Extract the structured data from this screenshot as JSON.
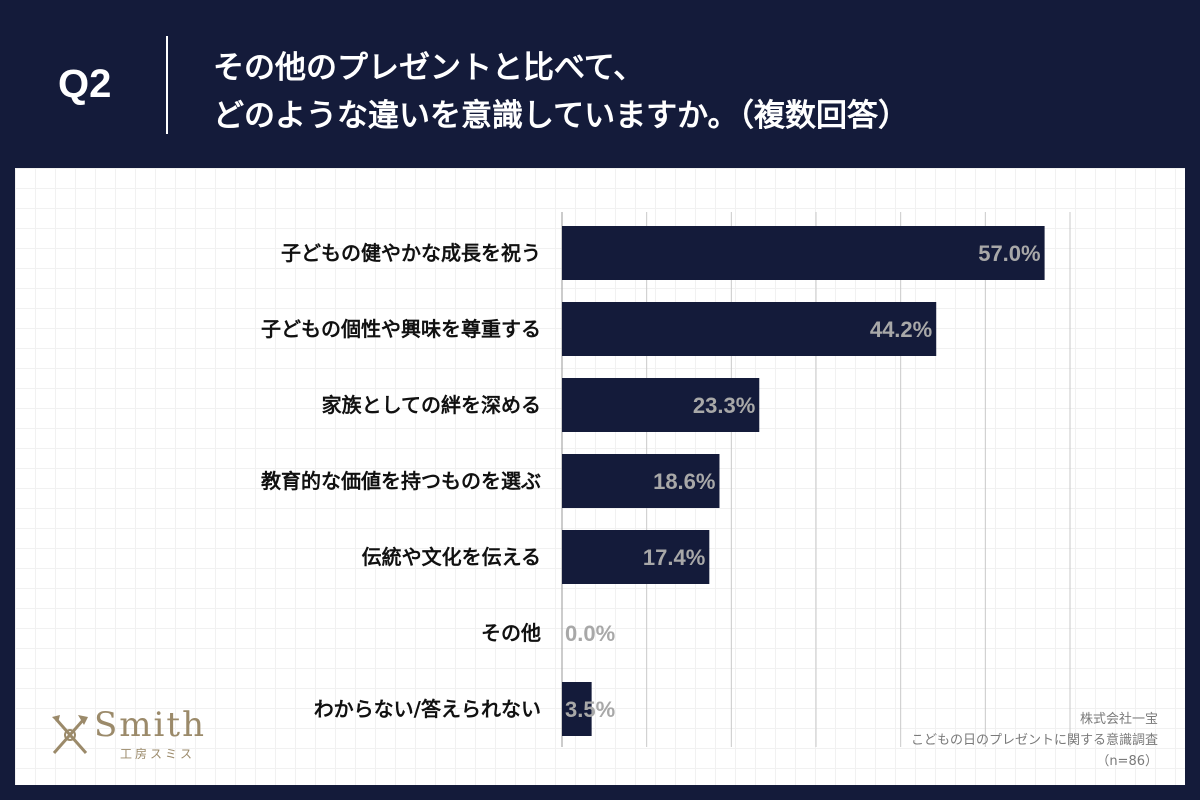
{
  "header": {
    "question_label": "Q2",
    "title_line1": "その他のプレゼントと比べて、",
    "title_line2": "どのような違いを意識していますか。（複数回答）"
  },
  "logo": {
    "name": "Smith",
    "subtitle": "工房スミス",
    "icon": "crossed-tools-icon"
  },
  "source": {
    "company": "株式会社一宝",
    "survey": "こどもの日のプレゼントに関する意識調査",
    "sample": "（n=86）"
  },
  "colors": {
    "header_bg": "#141b3a",
    "bar": "#141b3a",
    "value_label": "#a8a8a8",
    "logo": "#9b8a6a"
  },
  "chart_data": {
    "type": "bar",
    "orientation": "horizontal",
    "categories": [
      "子どもの健やかな成長を祝う",
      "子どもの個性や興味を尊重する",
      "家族としての絆を深める",
      "教育的な価値を持つものを選ぶ",
      "伝統や文化を伝える",
      "その他",
      "わからない/答えられない"
    ],
    "values": [
      57.0,
      44.2,
      23.3,
      18.6,
      17.4,
      0.0,
      3.5
    ],
    "value_labels": [
      "57.0%",
      "44.2%",
      "23.3%",
      "18.6%",
      "17.4%",
      "0.0%",
      "3.5%"
    ],
    "xlim": [
      0,
      60
    ],
    "grid": true
  }
}
